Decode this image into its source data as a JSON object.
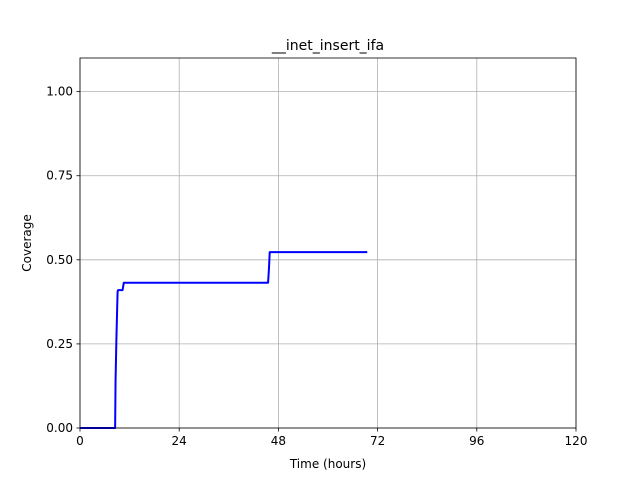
{
  "chart_data": {
    "type": "line",
    "title": "__inet_insert_ifa",
    "xlabel": "Time (hours)",
    "ylabel": "Coverage",
    "xlim": [
      0,
      120
    ],
    "ylim": [
      0,
      1.1
    ],
    "xticks": [
      0,
      24,
      48,
      72,
      96,
      120
    ],
    "xtick_labels": [
      "0",
      "24",
      "48",
      "72",
      "96",
      "120"
    ],
    "yticks": [
      0,
      0.25,
      0.5,
      0.75,
      1.0
    ],
    "ytick_labels": [
      "0.00",
      "0.25",
      "0.50",
      "0.75",
      "1.00"
    ],
    "grid": true,
    "series": [
      {
        "color": "#0000ff",
        "x": [
          0,
          8.5,
          8.6,
          8.8,
          9.0,
          9.1,
          9.2,
          10.1,
          10.3,
          10.5,
          10.6,
          45.5,
          45.7,
          45.9,
          69.5
        ],
        "y": [
          0.0,
          0.0,
          0.14,
          0.26,
          0.36,
          0.405,
          0.41,
          0.41,
          0.41,
          0.425,
          0.432,
          0.432,
          0.47,
          0.523,
          0.523
        ]
      }
    ]
  }
}
